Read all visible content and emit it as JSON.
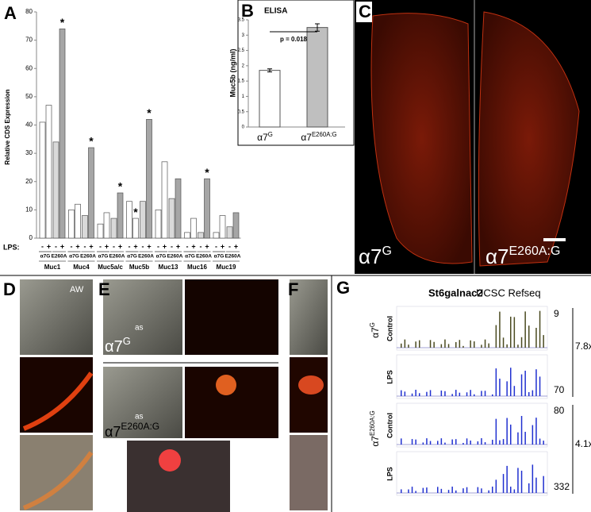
{
  "chart_data": [
    {
      "type": "bar",
      "panel": "A",
      "ylabel": "Relative CDS Expression",
      "xlabel": "LPS:",
      "categories": [
        "Muc1",
        "Muc4",
        "Muc5a/c",
        "Muc5b",
        "Muc13",
        "Muc16",
        "Muc19"
      ],
      "groups": [
        "α7G",
        "E260A"
      ],
      "series": [
        {
          "name": "-",
          "color": "#ffffff",
          "values": [
            41,
            10,
            5,
            13,
            10,
            2,
            2
          ]
        },
        {
          "name": "+",
          "color": "#ffffff",
          "values": [
            47,
            12,
            9,
            7,
            27,
            7,
            8
          ]
        },
        {
          "name": "-",
          "color": "#d9d9d9",
          "values": [
            34,
            8,
            7,
            13,
            14,
            2,
            4
          ]
        },
        {
          "name": "+",
          "color": "#a6a6a6",
          "values": [
            74,
            32,
            16,
            42,
            21,
            21,
            9
          ]
        }
      ],
      "annotations": [
        {
          "text": "*",
          "series": 3,
          "category": 0
        },
        {
          "text": "*",
          "series": 3,
          "category": 1
        },
        {
          "text": "*",
          "series": 3,
          "category": 2
        },
        {
          "text": "*",
          "series": 1,
          "category": 3
        },
        {
          "text": "*",
          "series": 3,
          "category": 3
        },
        {
          "text": "*",
          "series": 3,
          "category": 5
        }
      ],
      "ylim": [
        0,
        80
      ],
      "yticks": [
        0,
        10,
        20,
        30,
        40,
        50,
        60,
        70,
        80
      ]
    },
    {
      "type": "bar",
      "panel": "B",
      "title": "ELISA",
      "ylabel": "Muc5b (ng/ml)",
      "categories": [
        {
          "text": "α7",
          "sup": "G"
        },
        {
          "text": "α7",
          "sup": "E260A:G"
        }
      ],
      "values": [
        1.85,
        3.25
      ],
      "errors": [
        0.05,
        0.12
      ],
      "colors": [
        "#ffffff",
        "#bfbfbf"
      ],
      "annotation": "p = 0.018",
      "ylim": [
        0,
        3.5
      ],
      "yticks": [
        0,
        0.5,
        1,
        1.5,
        2,
        2.5,
        3,
        3.5
      ]
    }
  ],
  "panels": {
    "C": {
      "letter": "C",
      "left": {
        "text": "α7",
        "sup": "G"
      },
      "right": {
        "text": "α7",
        "sup": "E260A:G"
      }
    },
    "D": {
      "letter": "D",
      "label": "AW"
    },
    "E": {
      "letter": "E",
      "lumen": "as",
      "top": {
        "text": "α7",
        "sup": "G"
      },
      "bottom": {
        "text": "α7",
        "sup": "E260A:G"
      }
    },
    "F": {
      "letter": "F"
    },
    "G": {
      "letter": "G",
      "gene": "St6galnac2",
      "track": "UCSC Refseq",
      "genotypes": [
        {
          "text": "α7",
          "sup": "G"
        },
        {
          "text": "α7",
          "sup": "E260A:G"
        }
      ],
      "conditions": [
        "Control",
        "LPS",
        "Control",
        "LPS"
      ],
      "scales": [
        "9",
        "70",
        "80",
        "332"
      ],
      "folds": [
        "7.8x",
        "4.1x"
      ]
    }
  }
}
